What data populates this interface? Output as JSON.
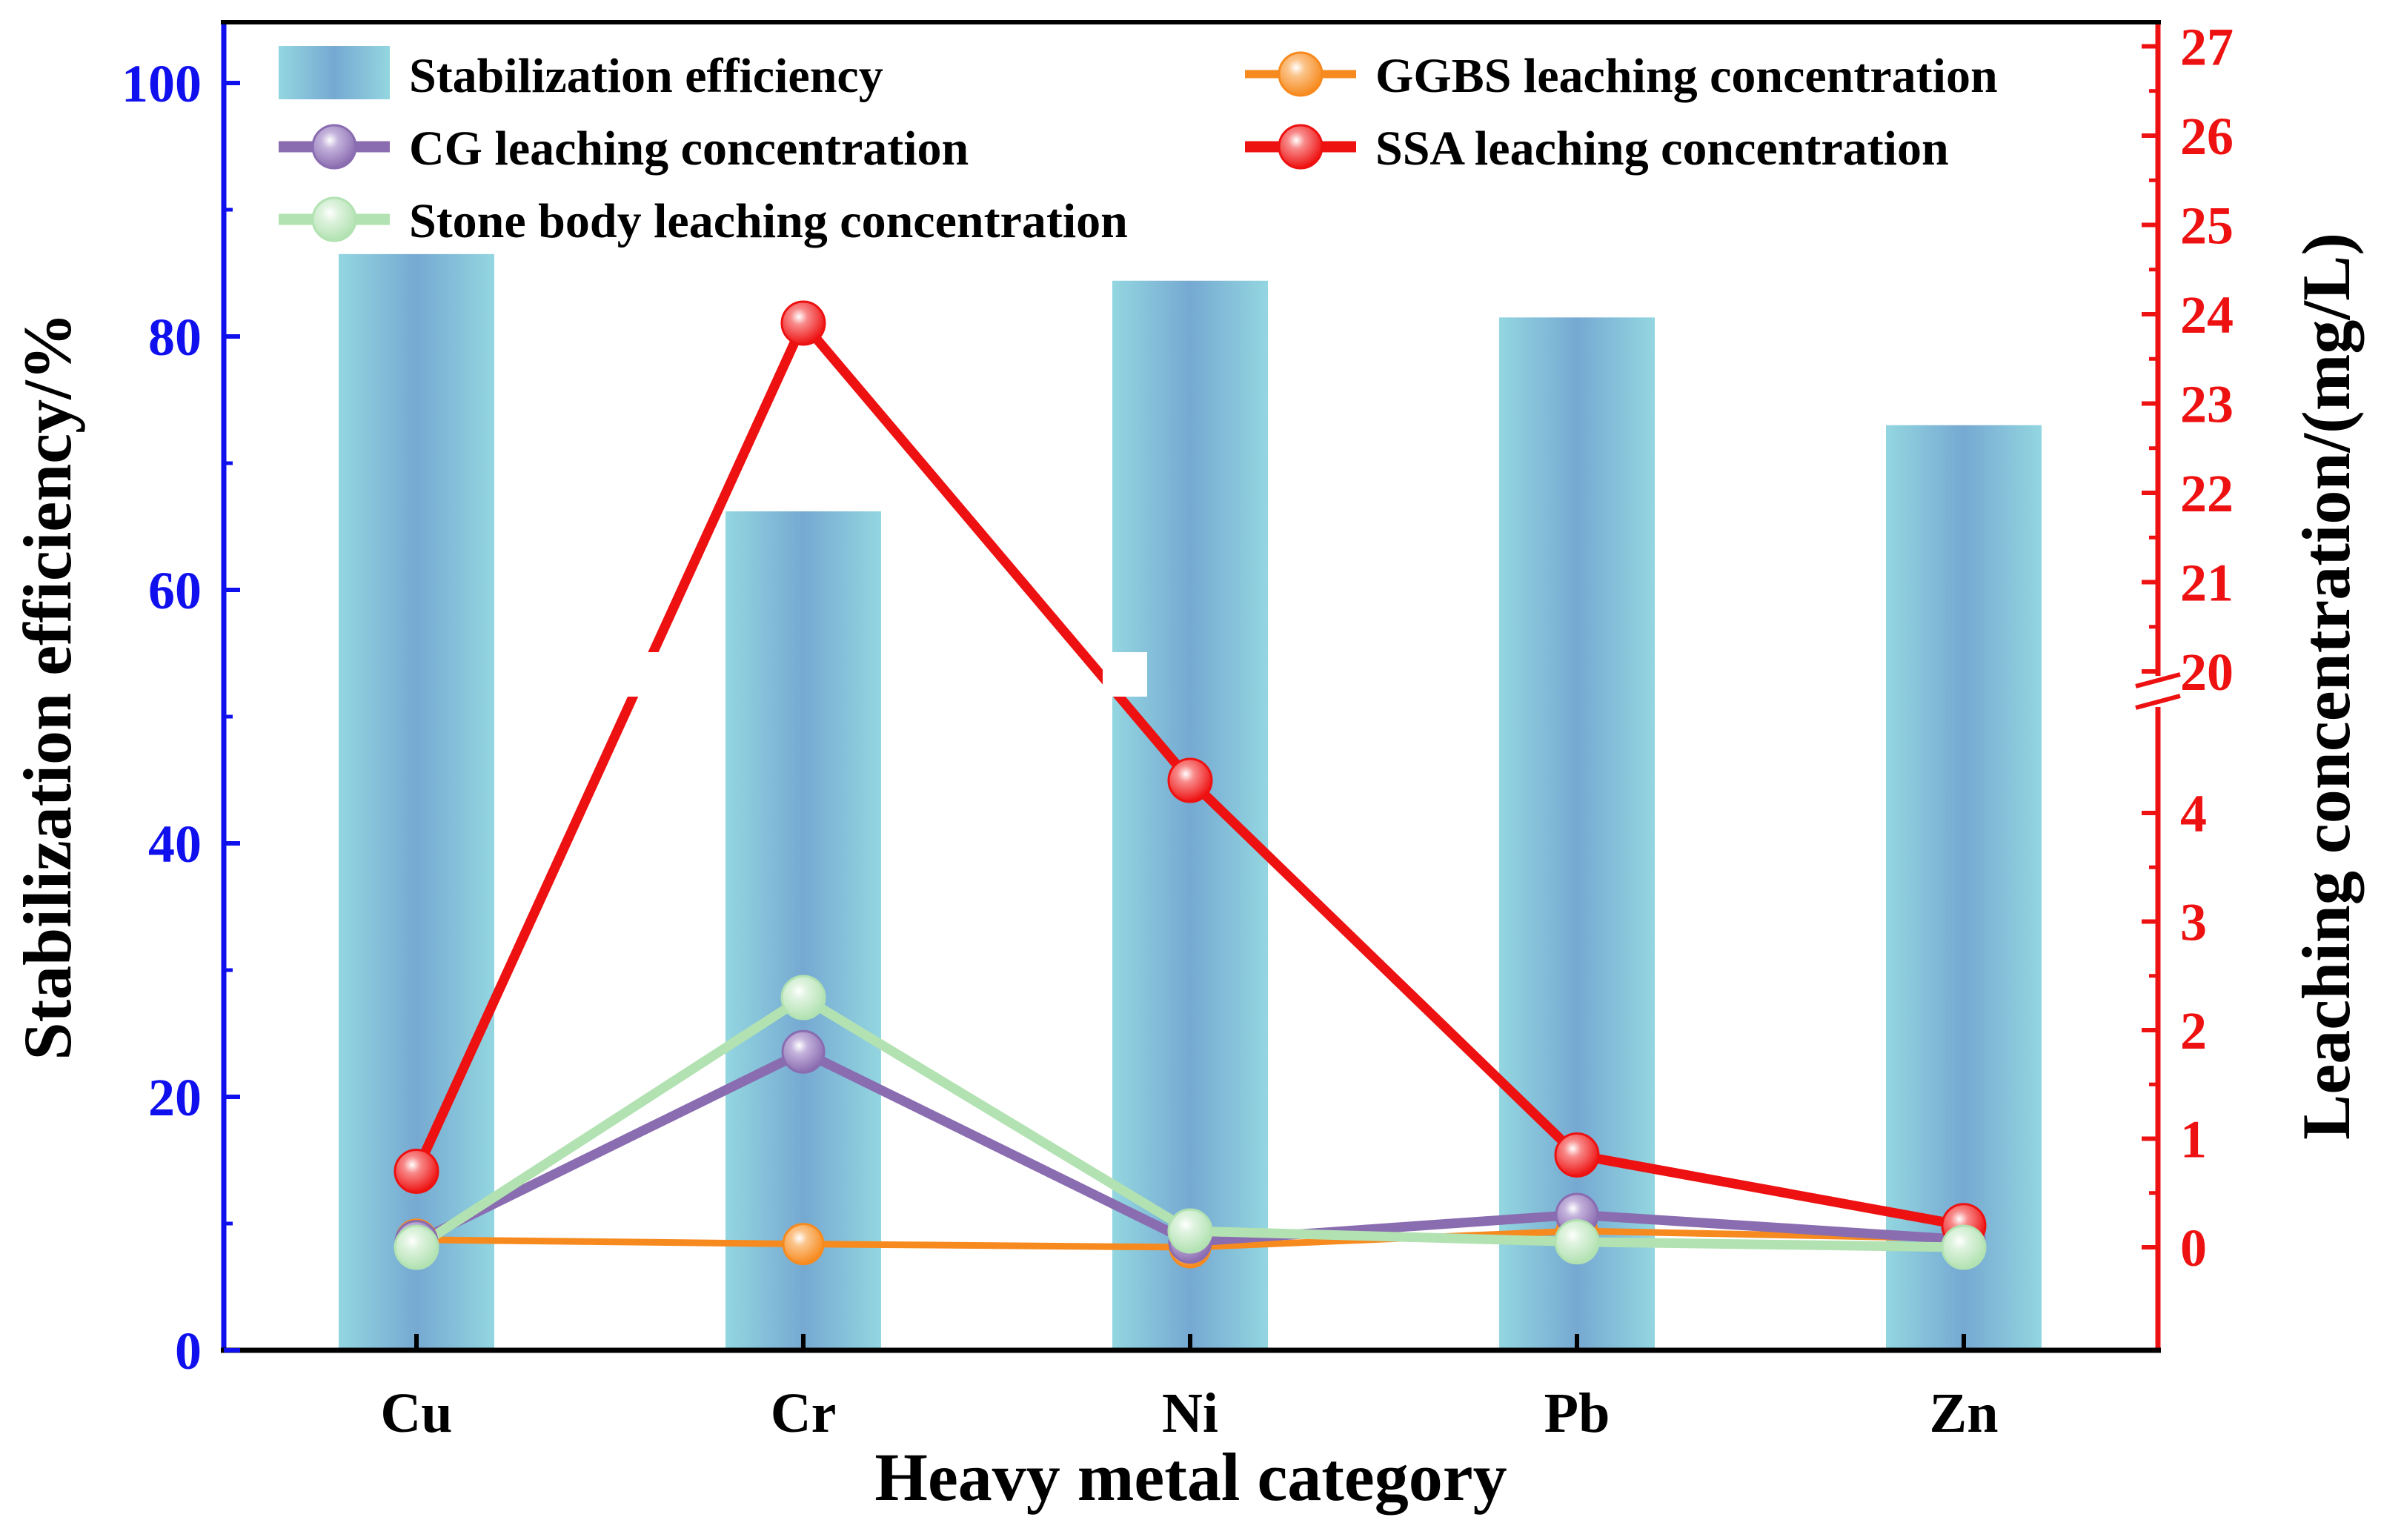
{
  "chart_data": {
    "type": "bar+line",
    "title": "",
    "xlabel": "Heavy metal category",
    "ylabel_left": "Stabilization efficiency/%",
    "ylabel_right": "Leaching concentration/(mg/L)",
    "categories": [
      "Cu",
      "Cr",
      "Ni",
      "Pb",
      "Zn"
    ],
    "left_axis": {
      "ylim": [
        0,
        105
      ],
      "ticks": [
        0,
        20,
        40,
        60,
        80,
        100
      ],
      "tick_labels": [
        "0",
        "20",
        "40",
        "60",
        "80",
        "100"
      ],
      "color": "#1010ee"
    },
    "right_axis": {
      "broken": true,
      "lower_range": [
        -0.7,
        4.9
      ],
      "upper_range": [
        19.9,
        27.4
      ],
      "tick_labels": [
        "0",
        "1",
        "2",
        "3",
        "4",
        "20",
        "21",
        "22",
        "23",
        "24",
        "25",
        "26",
        "27"
      ],
      "tick_values": [
        0,
        1,
        2,
        3,
        4,
        20,
        21,
        22,
        23,
        24,
        25,
        26,
        27
      ],
      "color": "#ee1111"
    },
    "bars": {
      "name": "Stabilization efficiency",
      "values": [
        86.5,
        66.2,
        84.4,
        81.5,
        73.0
      ],
      "color": "#7fb8d8"
    },
    "series": [
      {
        "name": "GGBS leaching concentration",
        "values": [
          0.07,
          0.03,
          0.0,
          0.15,
          0.08
        ],
        "color": "#f78a1e"
      },
      {
        "name": "CG leaching concentration",
        "values": [
          0.05,
          1.8,
          0.05,
          0.3,
          0.07
        ],
        "color": "#8a6cb0"
      },
      {
        "name": "SSA leaching concentration",
        "values": [
          0.7,
          23.9,
          4.3,
          0.85,
          0.2
        ],
        "color": "#ee1111"
      },
      {
        "name": "Stone body leaching concentration",
        "values": [
          0.0,
          2.3,
          0.15,
          0.05,
          0.0
        ],
        "color": "#b2e2b2"
      }
    ],
    "legend_position": "top"
  }
}
